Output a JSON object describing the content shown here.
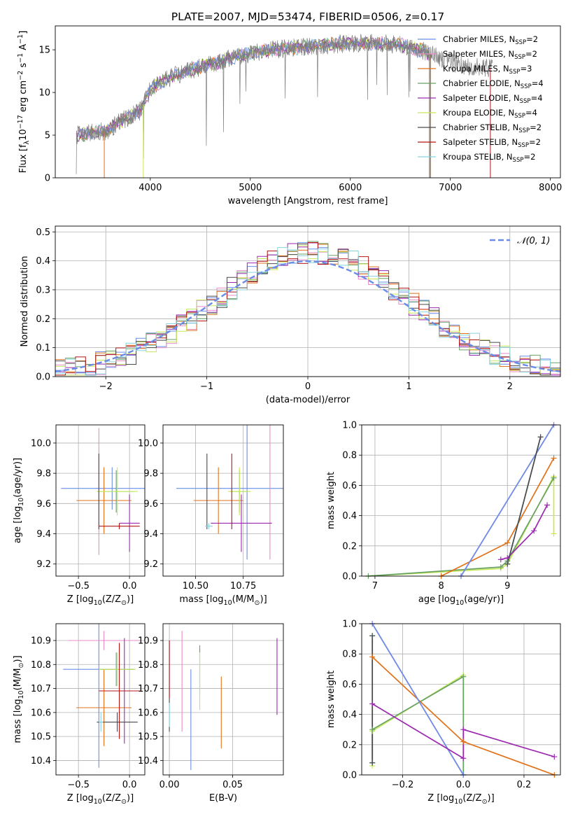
{
  "figure": {
    "title": "PLATE=2007, MJD=53474, FIBERID=0506, z=0.17"
  },
  "models": [
    {
      "name": "Chabrier MILES",
      "nssp": 2,
      "color": "#6a8de8"
    },
    {
      "name": "Salpeter MILES",
      "nssp": 2,
      "color": "#e98bc6"
    },
    {
      "name": "Kroupa MILES",
      "nssp": 3,
      "color": "#e0721a"
    },
    {
      "name": "Chabrier ELODIE",
      "nssp": 4,
      "color": "#67a263"
    },
    {
      "name": "Salpeter ELODIE",
      "nssp": 4,
      "color": "#9b2ab0"
    },
    {
      "name": "Kroupa ELODIE",
      "nssp": 4,
      "color": "#c8e85a"
    },
    {
      "name": "Chabrier STELIB",
      "nssp": 2,
      "color": "#4a4a4a"
    },
    {
      "name": "Salpeter STELIB",
      "nssp": 2,
      "color": "#b51515"
    },
    {
      "name": "Kroupa STELIB",
      "nssp": 2,
      "color": "#86d3df"
    }
  ],
  "chart_data": [
    {
      "id": "spectrum",
      "type": "line",
      "title": "PLATE=2007, MJD=53474, FIBERID=0506, z=0.17",
      "xlabel": "wavelength [Angstrom, rest frame]",
      "ylabel": "Flux [f",
      "ylabel_sub": "λ",
      "ylabel_tail": "10",
      "ylabel_sup": "−17",
      "ylabel_units": " erg cm",
      "ylabel_sup2": "−2",
      "ylabel_units2": " s",
      "ylabel_sup3": "−1",
      "ylabel_units3": " A",
      "ylabel_sup4": "−1",
      "ylabel_end": "]",
      "xlim": [
        3050,
        8100
      ],
      "ylim": [
        0,
        17.8
      ],
      "xticks": [
        "4000",
        "5000",
        "6000",
        "7000",
        "8000"
      ],
      "yticks": [
        "0",
        "5",
        "10",
        "15"
      ],
      "grid": false,
      "legend": "right",
      "continuum": [
        [
          3260,
          5.0
        ],
        [
          3500,
          5.4
        ],
        [
          3560,
          5.5
        ],
        [
          3700,
          6.6
        ],
        [
          3900,
          7.8
        ],
        [
          4000,
          10.4
        ],
        [
          4200,
          11.8
        ],
        [
          4500,
          13.0
        ],
        [
          4800,
          14.0
        ],
        [
          5000,
          14.6
        ],
        [
          5300,
          15.1
        ],
        [
          5600,
          15.4
        ],
        [
          5900,
          15.7
        ],
        [
          6200,
          15.8
        ],
        [
          6500,
          15.6
        ],
        [
          6700,
          15.0
        ],
        [
          6800,
          14.5
        ],
        [
          7000,
          13.5
        ],
        [
          7200,
          13.0
        ],
        [
          7420,
          12.8
        ]
      ]
    },
    {
      "id": "residuals",
      "type": "line",
      "xlabel": "(data-model)/error",
      "ylabel": "Normed distribution",
      "xlim": [
        -2.5,
        2.5
      ],
      "ylim": [
        0,
        0.52
      ],
      "xticks": [
        "−2",
        "−1",
        "0",
        "1",
        "2"
      ],
      "yticks": [
        "0.0",
        "0.1",
        "0.2",
        "0.3",
        "0.4",
        "0.5"
      ],
      "grid": true,
      "legend": "top-right",
      "gaussian_label": "𝒩(0, 1)"
    },
    {
      "id": "age-vs-Z",
      "type": "scatter",
      "xlabel": "Z [log",
      "xlabel_sub": "10",
      "xlabel_tail": "(Z/Z",
      "xlabel_sub2": "⊙",
      "xlabel_end": ")]",
      "ylabel": "age  [log",
      "ylabel_sub": "10",
      "ylabel_tail": "(age/yr)]",
      "xlim": [
        -0.72,
        0.15
      ],
      "ylim": [
        9.12,
        10.12
      ],
      "xticks": [
        "−0.5",
        "0.0"
      ],
      "yticks": [
        "9.2",
        "9.4",
        "9.6",
        "9.8",
        "10.0"
      ],
      "grid": true,
      "points": [
        {
          "model": 0,
          "x": -0.17,
          "y": 9.7,
          "xerr": 0.5,
          "yerr": 0.14
        },
        {
          "model": 1,
          "x": -0.3,
          "y": 9.68,
          "xerr": 0.0,
          "yerr": 0.42
        },
        {
          "model": 2,
          "x": -0.25,
          "y": 9.62,
          "xerr": 0.27,
          "yerr": 0.22
        },
        {
          "model": 3,
          "x": -0.13,
          "y": 9.68,
          "xerr": 0.18,
          "yerr": 0.14
        },
        {
          "model": 4,
          "x": 0.0,
          "y": 9.47,
          "xerr": 0.1,
          "yerr": 0.19
        },
        {
          "model": 5,
          "x": -0.12,
          "y": 9.68,
          "xerr": 0.2,
          "yerr": 0.16
        },
        {
          "model": 6,
          "x": -0.3,
          "y": 9.68,
          "xerr": 0.0,
          "yerr": 0.25
        },
        {
          "model": 7,
          "x": -0.1,
          "y": 9.45,
          "xerr": 0.2,
          "yerr": 0.02
        },
        {
          "model": 8,
          "x": -0.3,
          "y": 9.45,
          "xerr": 0.0,
          "yerr": 0.0
        }
      ]
    },
    {
      "id": "age-vs-mass",
      "type": "scatter",
      "xlabel": "mass [log",
      "xlabel_sub": "10",
      "xlabel_tail": "(M/M",
      "xlabel_sub2": "⊙",
      "xlabel_end": ")]",
      "xlim": [
        10.33,
        10.96
      ],
      "ylim": [
        9.12,
        10.12
      ],
      "xticks": [
        "10.50",
        "10.75"
      ],
      "yticks": [
        "9.2",
        "9.4",
        "9.6",
        "9.8",
        "10.0"
      ],
      "grid": true,
      "points": [
        {
          "model": 0,
          "x": 10.77,
          "y": 9.7,
          "xerr": 0.37,
          "yerr": 0.47
        },
        {
          "model": 1,
          "x": 10.89,
          "y": 9.7,
          "xerr": 0.0,
          "yerr": 0.47
        },
        {
          "model": 2,
          "x": 10.62,
          "y": 9.62,
          "xerr": 0.13,
          "yerr": 0.22
        },
        {
          "model": 3,
          "x": 10.73,
          "y": 9.68,
          "xerr": 0.05,
          "yerr": 0.14
        },
        {
          "model": 4,
          "x": 10.74,
          "y": 9.47,
          "xerr": 0.16,
          "yerr": 0.19
        },
        {
          "model": 5,
          "x": 10.73,
          "y": 9.68,
          "xerr": 0.06,
          "yerr": 0.16
        },
        {
          "model": 6,
          "x": 10.56,
          "y": 9.68,
          "xerr": 0.0,
          "yerr": 0.25
        },
        {
          "model": 7,
          "x": 10.69,
          "y": 9.68,
          "xerr": 0.0,
          "yerr": 0.25
        },
        {
          "model": 8,
          "x": 10.57,
          "y": 9.45,
          "xerr": 0.02,
          "yerr": 0.02
        }
      ]
    },
    {
      "id": "massweight-vs-age",
      "type": "line",
      "xlabel": "age  [log",
      "xlabel_sub": "10",
      "xlabel_tail": "(age/yr)]",
      "ylabel": "mass weight",
      "xlim": [
        6.8,
        9.8
      ],
      "ylim": [
        0,
        1
      ],
      "xticks": [
        "7",
        "8",
        "9"
      ],
      "yticks": [
        "0.0",
        "0.2",
        "0.4",
        "0.6",
        "0.8",
        "1.0"
      ],
      "grid": true,
      "series": [
        {
          "model": 5,
          "points": [
            [
              6.9,
              0.0
            ],
            [
              8.9,
              0.05
            ],
            [
              9.0,
              0.08
            ],
            [
              9.7,
              0.66
            ],
            [
              9.7,
              0.28
            ]
          ]
        },
        {
          "model": 3,
          "points": [
            [
              6.9,
              0.0
            ],
            [
              8.9,
              0.06
            ],
            [
              9.0,
              0.1
            ],
            [
              9.7,
              0.65
            ]
          ]
        },
        {
          "model": 2,
          "points": [
            [
              8.0,
              0.0
            ],
            [
              9.0,
              0.22
            ],
            [
              9.7,
              0.78
            ]
          ]
        },
        {
          "model": 1,
          "points": [
            [
              8.3,
              0.0
            ],
            [
              9.7,
              1.0
            ]
          ]
        },
        {
          "model": 0,
          "points": [
            [
              8.3,
              0.0
            ],
            [
              9.7,
              1.0
            ]
          ]
        },
        {
          "model": 4,
          "points": [
            [
              8.9,
              0.11
            ],
            [
              9.0,
              0.12
            ],
            [
              9.4,
              0.3
            ],
            [
              9.6,
              0.47
            ]
          ]
        },
        {
          "model": 8,
          "points": [
            [
              9.0,
              0.08
            ],
            [
              9.5,
              0.92
            ]
          ]
        },
        {
          "model": 6,
          "points": [
            [
              9.0,
              0.08
            ],
            [
              9.5,
              0.92
            ]
          ]
        }
      ]
    },
    {
      "id": "mass-vs-Z",
      "type": "scatter",
      "xlabel": "Z [log",
      "xlabel_sub": "10",
      "xlabel_tail": "(Z/Z",
      "xlabel_sub2": "⊙",
      "xlabel_end": ")]",
      "ylabel": "mass [log",
      "ylabel_sub": "10",
      "ylabel_tail": "(M/M",
      "ylabel_sub2": "⊙",
      "ylabel_end": ")]",
      "xlim": [
        -0.72,
        0.15
      ],
      "ylim": [
        10.34,
        10.97
      ],
      "xticks": [
        "−0.5",
        "0.0"
      ],
      "yticks": [
        "10.4",
        "10.5",
        "10.6",
        "10.7",
        "10.8",
        "10.9"
      ],
      "grid": true,
      "points": [
        {
          "model": 0,
          "x": -0.3,
          "y": 10.78,
          "xerr": 0.35,
          "yerr": 0.41
        },
        {
          "model": 1,
          "x": -0.25,
          "y": 10.9,
          "xerr": 0.35,
          "yerr": 0.04
        },
        {
          "model": 2,
          "x": -0.25,
          "y": 10.62,
          "xerr": 0.27,
          "yerr": 0.16
        },
        {
          "model": 3,
          "x": -0.13,
          "y": 10.78,
          "xerr": 0.17,
          "yerr": 0.07
        },
        {
          "model": 4,
          "x": -0.05,
          "y": 10.69,
          "xerr": 0.12,
          "yerr": 0.22
        },
        {
          "model": 5,
          "x": -0.12,
          "y": 10.78,
          "xerr": 0.18,
          "yerr": 0.07
        },
        {
          "model": 6,
          "x": -0.12,
          "y": 10.56,
          "xerr": 0.2,
          "yerr": 0.04
        },
        {
          "model": 7,
          "x": -0.1,
          "y": 10.69,
          "xerr": 0.2,
          "yerr": 0.2
        },
        {
          "model": 8,
          "x": -0.28,
          "y": 10.56,
          "xerr": 0.02,
          "yerr": 0.04
        }
      ]
    },
    {
      "id": "mass-vs-ebv",
      "type": "scatter",
      "xlabel": "E(B-V)",
      "xlim": [
        -0.005,
        0.09
      ],
      "ylim": [
        10.34,
        10.97
      ],
      "xticks": [
        "0.00",
        "0.05"
      ],
      "yticks": [
        "10.4",
        "10.5",
        "10.6",
        "10.7",
        "10.8",
        "10.9"
      ],
      "grid": true,
      "points": [
        {
          "model": 0,
          "x": 0.017,
          "y": 10.57,
          "xerr": 0.0,
          "yerr": 0.21
        },
        {
          "model": 1,
          "x": 0.01,
          "y": 10.73,
          "xerr": 0.0,
          "yerr": 0.21
        },
        {
          "model": 2,
          "x": 0.041,
          "y": 10.6,
          "xerr": 0.0,
          "yerr": 0.15
        },
        {
          "model": 3,
          "x": 0.024,
          "y": 10.78,
          "xerr": 0.0,
          "yerr": 0.1
        },
        {
          "model": 4,
          "x": 0.085,
          "y": 10.75,
          "xerr": 0.0,
          "yerr": 0.16
        },
        {
          "model": 5,
          "x": 0.024,
          "y": 10.73,
          "xerr": 0.0,
          "yerr": 0.12
        },
        {
          "model": 6,
          "x": 0.0,
          "y": 10.71,
          "xerr": 0.0,
          "yerr": 0.19
        },
        {
          "model": 7,
          "x": 0.0,
          "y": 10.78,
          "xerr": 0.0,
          "yerr": 0.12
        },
        {
          "model": 8,
          "x": 0.0,
          "y": 10.59,
          "xerr": 0.0,
          "yerr": 0.05
        }
      ]
    },
    {
      "id": "massweight-vs-Z",
      "type": "line",
      "xlabel": "Z [log",
      "xlabel_sub": "10",
      "xlabel_tail": "(Z/Z",
      "xlabel_sub2": "⊙",
      "xlabel_end": ")]",
      "ylabel": "mass weight",
      "xlim": [
        -0.335,
        0.32
      ],
      "ylim": [
        0,
        1
      ],
      "xticks": [
        "−0.2",
        "0.0",
        "0.2"
      ],
      "yticks": [
        "0.0",
        "0.2",
        "0.4",
        "0.6",
        "0.8",
        "1.0"
      ],
      "grid": true,
      "series": [
        {
          "model": 5,
          "points": [
            [
              -0.3,
              0.06
            ],
            [
              -0.3,
              0.29
            ],
            [
              0.0,
              0.66
            ],
            [
              0.0,
              0.0
            ]
          ]
        },
        {
          "model": 3,
          "points": [
            [
              -0.3,
              0.08
            ],
            [
              -0.3,
              0.3
            ],
            [
              0.0,
              0.65
            ],
            [
              0.0,
              0.0
            ]
          ]
        },
        {
          "model": 2,
          "points": [
            [
              -0.3,
              0.78
            ],
            [
              0.0,
              0.22
            ],
            [
              0.3,
              0.0
            ]
          ]
        },
        {
          "model": 1,
          "points": [
            [
              -0.3,
              1.0
            ],
            [
              0.0,
              0.0
            ]
          ]
        },
        {
          "model": 0,
          "points": [
            [
              -0.3,
              1.0
            ],
            [
              0.0,
              0.0
            ]
          ]
        },
        {
          "model": 4,
          "points": [
            [
              -0.3,
              0.47
            ],
            [
              0.0,
              0.11
            ],
            [
              0.0,
              0.3
            ],
            [
              0.3,
              0.12
            ]
          ]
        },
        {
          "model": 8,
          "points": [
            [
              -0.3,
              0.08
            ],
            [
              -0.3,
              0.92
            ]
          ]
        },
        {
          "model": 6,
          "points": [
            [
              -0.3,
              0.08
            ],
            [
              -0.3,
              0.92
            ]
          ]
        }
      ]
    }
  ]
}
